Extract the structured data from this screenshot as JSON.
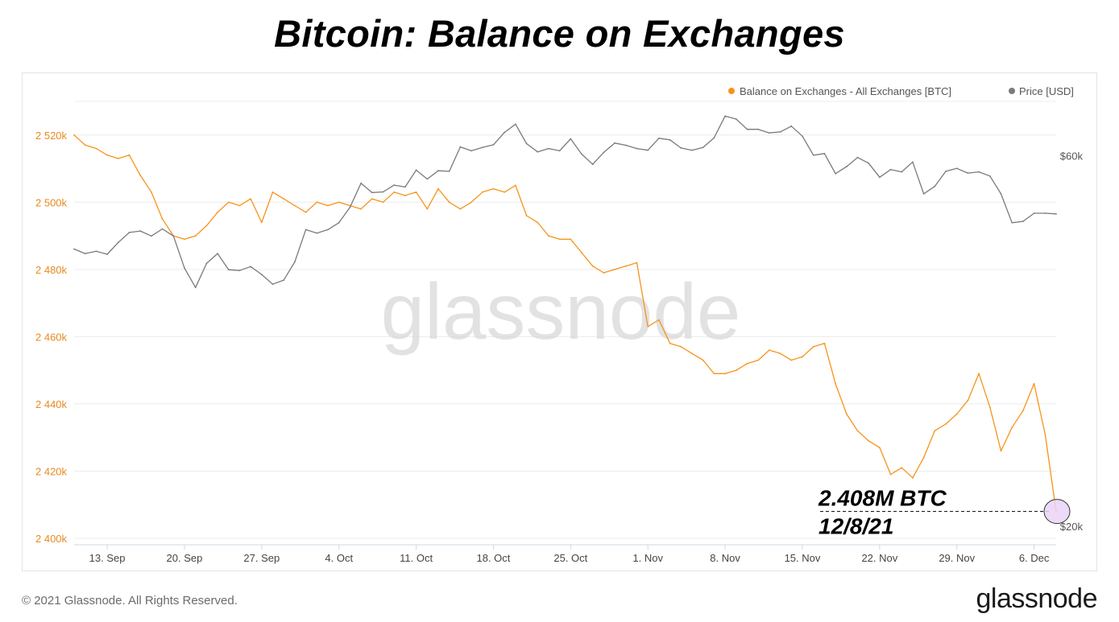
{
  "page": {
    "title": "Bitcoin: Balance on Exchanges",
    "copyright": "© 2021 Glassnode. All Rights Reserved.",
    "brand": "glassnode",
    "watermark": "glassnode"
  },
  "chart_data": {
    "type": "line",
    "title": "Bitcoin: Balance on Exchanges",
    "legend": {
      "position": "top-right",
      "items": [
        {
          "label": "Balance on Exchanges - All Exchanges [BTC]",
          "color": "#f7931a"
        },
        {
          "label": "Price [USD]",
          "color": "#7a7a7a"
        }
      ]
    },
    "x_axis": {
      "type": "date",
      "range": [
        "2021-09-10",
        "2021-12-08"
      ],
      "ticks": [
        {
          "date": "2021-09-13",
          "label": "13. Sep"
        },
        {
          "date": "2021-09-20",
          "label": "20. Sep"
        },
        {
          "date": "2021-09-27",
          "label": "27. Sep"
        },
        {
          "date": "2021-10-04",
          "label": "4. Oct"
        },
        {
          "date": "2021-10-11",
          "label": "11. Oct"
        },
        {
          "date": "2021-10-18",
          "label": "18. Oct"
        },
        {
          "date": "2021-10-25",
          "label": "25. Oct"
        },
        {
          "date": "2021-11-01",
          "label": "1. Nov"
        },
        {
          "date": "2021-11-08",
          "label": "8. Nov"
        },
        {
          "date": "2021-11-15",
          "label": "15. Nov"
        },
        {
          "date": "2021-11-22",
          "label": "22. Nov"
        },
        {
          "date": "2021-11-29",
          "label": "29. Nov"
        },
        {
          "date": "2021-12-06",
          "label": "6. Dec"
        }
      ]
    },
    "y_left": {
      "unit": "BTC",
      "range": [
        2400000,
        2530000
      ],
      "color": "#e8891c",
      "ticks": [
        {
          "value": 2400000,
          "label": "2 400k"
        },
        {
          "value": 2420000,
          "label": "2 420k"
        },
        {
          "value": 2440000,
          "label": "2 440k"
        },
        {
          "value": 2460000,
          "label": "2 460k"
        },
        {
          "value": 2480000,
          "label": "2 480k"
        },
        {
          "value": 2500000,
          "label": "2 500k"
        },
        {
          "value": 2520000,
          "label": "2 520k"
        }
      ]
    },
    "y_right": {
      "unit": "USD",
      "scale": "log",
      "range": [
        19300,
        70500
      ],
      "ticks": [
        {
          "value": 20000,
          "label": "$20k"
        },
        {
          "value": 60000,
          "label": "$60k"
        }
      ]
    },
    "grid": true,
    "series": [
      {
        "name": "Balance on Exchanges - All Exchanges [BTC]",
        "axis": "left",
        "color": "#f7931a",
        "points": [
          [
            "2021-09-10",
            2520000
          ],
          [
            "2021-09-11",
            2517000
          ],
          [
            "2021-09-12",
            2516000
          ],
          [
            "2021-09-13",
            2514000
          ],
          [
            "2021-09-14",
            2513000
          ],
          [
            "2021-09-15",
            2514000
          ],
          [
            "2021-09-16",
            2508000
          ],
          [
            "2021-09-17",
            2503000
          ],
          [
            "2021-09-18",
            2495000
          ],
          [
            "2021-09-19",
            2490000
          ],
          [
            "2021-09-20",
            2489000
          ],
          [
            "2021-09-21",
            2490000
          ],
          [
            "2021-09-22",
            2493000
          ],
          [
            "2021-09-23",
            2497000
          ],
          [
            "2021-09-24",
            2500000
          ],
          [
            "2021-09-25",
            2499000
          ],
          [
            "2021-09-26",
            2501000
          ],
          [
            "2021-09-27",
            2494000
          ],
          [
            "2021-09-28",
            2503000
          ],
          [
            "2021-09-29",
            2501000
          ],
          [
            "2021-09-30",
            2499000
          ],
          [
            "2021-10-01",
            2497000
          ],
          [
            "2021-10-02",
            2500000
          ],
          [
            "2021-10-03",
            2499000
          ],
          [
            "2021-10-04",
            2500000
          ],
          [
            "2021-10-05",
            2499000
          ],
          [
            "2021-10-06",
            2498000
          ],
          [
            "2021-10-07",
            2501000
          ],
          [
            "2021-10-08",
            2500000
          ],
          [
            "2021-10-09",
            2503000
          ],
          [
            "2021-10-10",
            2502000
          ],
          [
            "2021-10-11",
            2503000
          ],
          [
            "2021-10-12",
            2498000
          ],
          [
            "2021-10-13",
            2504000
          ],
          [
            "2021-10-14",
            2500000
          ],
          [
            "2021-10-15",
            2498000
          ],
          [
            "2021-10-16",
            2500000
          ],
          [
            "2021-10-17",
            2503000
          ],
          [
            "2021-10-18",
            2504000
          ],
          [
            "2021-10-19",
            2503000
          ],
          [
            "2021-10-20",
            2505000
          ],
          [
            "2021-10-21",
            2496000
          ],
          [
            "2021-10-22",
            2494000
          ],
          [
            "2021-10-23",
            2490000
          ],
          [
            "2021-10-24",
            2489000
          ],
          [
            "2021-10-25",
            2489000
          ],
          [
            "2021-10-26",
            2485000
          ],
          [
            "2021-10-27",
            2481000
          ],
          [
            "2021-10-28",
            2479000
          ],
          [
            "2021-10-29",
            2480000
          ],
          [
            "2021-10-30",
            2481000
          ],
          [
            "2021-10-31",
            2482000
          ],
          [
            "2021-11-01",
            2463000
          ],
          [
            "2021-11-02",
            2465000
          ],
          [
            "2021-11-03",
            2458000
          ],
          [
            "2021-11-04",
            2457000
          ],
          [
            "2021-11-05",
            2455000
          ],
          [
            "2021-11-06",
            2453000
          ],
          [
            "2021-11-07",
            2449000
          ],
          [
            "2021-11-08",
            2449000
          ],
          [
            "2021-11-09",
            2450000
          ],
          [
            "2021-11-10",
            2452000
          ],
          [
            "2021-11-11",
            2453000
          ],
          [
            "2021-11-12",
            2456000
          ],
          [
            "2021-11-13",
            2455000
          ],
          [
            "2021-11-14",
            2453000
          ],
          [
            "2021-11-15",
            2454000
          ],
          [
            "2021-11-16",
            2457000
          ],
          [
            "2021-11-17",
            2458000
          ],
          [
            "2021-11-18",
            2446000
          ],
          [
            "2021-11-19",
            2437000
          ],
          [
            "2021-11-20",
            2432000
          ],
          [
            "2021-11-21",
            2429000
          ],
          [
            "2021-11-22",
            2427000
          ],
          [
            "2021-11-23",
            2419000
          ],
          [
            "2021-11-24",
            2421000
          ],
          [
            "2021-11-25",
            2418000
          ],
          [
            "2021-11-26",
            2424000
          ],
          [
            "2021-11-27",
            2432000
          ],
          [
            "2021-11-28",
            2434000
          ],
          [
            "2021-11-29",
            2437000
          ],
          [
            "2021-11-30",
            2441000
          ],
          [
            "2021-12-01",
            2449000
          ],
          [
            "2021-12-02",
            2439000
          ],
          [
            "2021-12-03",
            2426000
          ],
          [
            "2021-12-04",
            2433000
          ],
          [
            "2021-12-05",
            2438000
          ],
          [
            "2021-12-06",
            2446000
          ],
          [
            "2021-12-07",
            2431000
          ],
          [
            "2021-12-08",
            2408000
          ]
        ]
      },
      {
        "name": "Price [USD]",
        "axis": "right",
        "color": "#7a7a7a",
        "points": [
          [
            "2021-09-10",
            45500
          ],
          [
            "2021-09-11",
            44900
          ],
          [
            "2021-09-12",
            45200
          ],
          [
            "2021-09-13",
            44800
          ],
          [
            "2021-09-14",
            46400
          ],
          [
            "2021-09-15",
            47800
          ],
          [
            "2021-09-16",
            48000
          ],
          [
            "2021-09-17",
            47300
          ],
          [
            "2021-09-18",
            48300
          ],
          [
            "2021-09-19",
            47300
          ],
          [
            "2021-09-20",
            43000
          ],
          [
            "2021-09-21",
            40600
          ],
          [
            "2021-09-22",
            43600
          ],
          [
            "2021-09-23",
            44900
          ],
          [
            "2021-09-24",
            42800
          ],
          [
            "2021-09-25",
            42700
          ],
          [
            "2021-09-26",
            43200
          ],
          [
            "2021-09-27",
            42200
          ],
          [
            "2021-09-28",
            41000
          ],
          [
            "2021-09-29",
            41500
          ],
          [
            "2021-09-30",
            43800
          ],
          [
            "2021-10-01",
            48200
          ],
          [
            "2021-10-02",
            47700
          ],
          [
            "2021-10-03",
            48200
          ],
          [
            "2021-10-04",
            49200
          ],
          [
            "2021-10-05",
            51500
          ],
          [
            "2021-10-06",
            55300
          ],
          [
            "2021-10-07",
            53800
          ],
          [
            "2021-10-08",
            53900
          ],
          [
            "2021-10-09",
            55000
          ],
          [
            "2021-10-10",
            54700
          ],
          [
            "2021-10-11",
            57500
          ],
          [
            "2021-10-12",
            56000
          ],
          [
            "2021-10-13",
            57400
          ],
          [
            "2021-10-14",
            57300
          ],
          [
            "2021-10-15",
            61600
          ],
          [
            "2021-10-16",
            60900
          ],
          [
            "2021-10-17",
            61500
          ],
          [
            "2021-10-18",
            62000
          ],
          [
            "2021-10-19",
            64300
          ],
          [
            "2021-10-20",
            65900
          ],
          [
            "2021-10-21",
            62200
          ],
          [
            "2021-10-22",
            60700
          ],
          [
            "2021-10-23",
            61300
          ],
          [
            "2021-10-24",
            60900
          ],
          [
            "2021-10-25",
            63100
          ],
          [
            "2021-10-26",
            60300
          ],
          [
            "2021-10-27",
            58500
          ],
          [
            "2021-10-28",
            60600
          ],
          [
            "2021-10-29",
            62300
          ],
          [
            "2021-10-30",
            61900
          ],
          [
            "2021-10-31",
            61300
          ],
          [
            "2021-11-01",
            61000
          ],
          [
            "2021-11-02",
            63200
          ],
          [
            "2021-11-03",
            62900
          ],
          [
            "2021-11-04",
            61400
          ],
          [
            "2021-11-05",
            61000
          ],
          [
            "2021-11-06",
            61500
          ],
          [
            "2021-11-07",
            63300
          ],
          [
            "2021-11-08",
            67500
          ],
          [
            "2021-11-09",
            66900
          ],
          [
            "2021-11-10",
            64900
          ],
          [
            "2021-11-11",
            64900
          ],
          [
            "2021-11-12",
            64200
          ],
          [
            "2021-11-13",
            64400
          ],
          [
            "2021-11-14",
            65500
          ],
          [
            "2021-11-15",
            63600
          ],
          [
            "2021-11-16",
            60100
          ],
          [
            "2021-11-17",
            60400
          ],
          [
            "2021-11-18",
            56900
          ],
          [
            "2021-11-19",
            58100
          ],
          [
            "2021-11-20",
            59700
          ],
          [
            "2021-11-21",
            58700
          ],
          [
            "2021-11-22",
            56300
          ],
          [
            "2021-11-23",
            57600
          ],
          [
            "2021-11-24",
            57200
          ],
          [
            "2021-11-25",
            58900
          ],
          [
            "2021-11-26",
            53600
          ],
          [
            "2021-11-27",
            54800
          ],
          [
            "2021-11-28",
            57300
          ],
          [
            "2021-11-29",
            57800
          ],
          [
            "2021-11-30",
            57000
          ],
          [
            "2021-12-01",
            57200
          ],
          [
            "2021-12-02",
            56500
          ],
          [
            "2021-12-03",
            53600
          ],
          [
            "2021-12-04",
            49200
          ],
          [
            "2021-12-05",
            49400
          ],
          [
            "2021-12-06",
            50600
          ],
          [
            "2021-12-07",
            50600
          ],
          [
            "2021-12-08",
            50500
          ]
        ]
      }
    ],
    "annotation": {
      "lines": [
        "2.408M BTC",
        "12/8/21"
      ],
      "value": 2408000,
      "date": "2021-12-08",
      "marker_color": "#e9d4f7"
    }
  }
}
